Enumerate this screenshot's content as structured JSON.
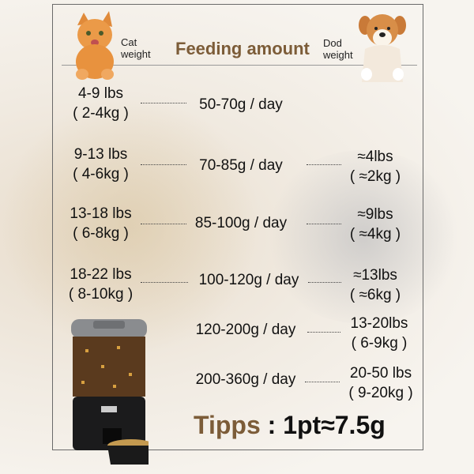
{
  "header": {
    "cat_label": "Cat\nweight",
    "cat_line1": "Cat",
    "cat_line2": "weight",
    "title": "Feeding amount",
    "dog_line1": "Dod",
    "dog_line2": "weight"
  },
  "rows": [
    {
      "cat": [
        "4-9 lbs",
        "( 2-4kg )"
      ],
      "amount": "50-70g / day",
      "dog": null
    },
    {
      "cat": [
        "9-13 lbs",
        "( 4-6kg )"
      ],
      "amount": "70-85g / day",
      "dog": [
        "≈4lbs",
        "( ≈2kg )"
      ]
    },
    {
      "cat": [
        "13-18 lbs",
        "( 6-8kg )"
      ],
      "amount": "85-100g / day",
      "dog": [
        "≈9lbs",
        "( ≈4kg )"
      ]
    },
    {
      "cat": [
        "18-22 lbs",
        "( 8-10kg )"
      ],
      "amount": "100-120g / day",
      "dog": [
        "≈13lbs",
        "( ≈6kg )"
      ]
    },
    {
      "cat": null,
      "amount": "120-200g / day",
      "dog": [
        "13-20lbs",
        "( 6-9kg )"
      ]
    },
    {
      "cat": null,
      "amount": "200-360g / day",
      "dog": [
        "20-50 lbs",
        "( 9-20kg )"
      ]
    }
  ],
  "tip": {
    "label": "Tipps",
    "value": " : 1pt≈7.5g"
  },
  "colors": {
    "accent": "#7c5c38",
    "text": "#111111"
  }
}
